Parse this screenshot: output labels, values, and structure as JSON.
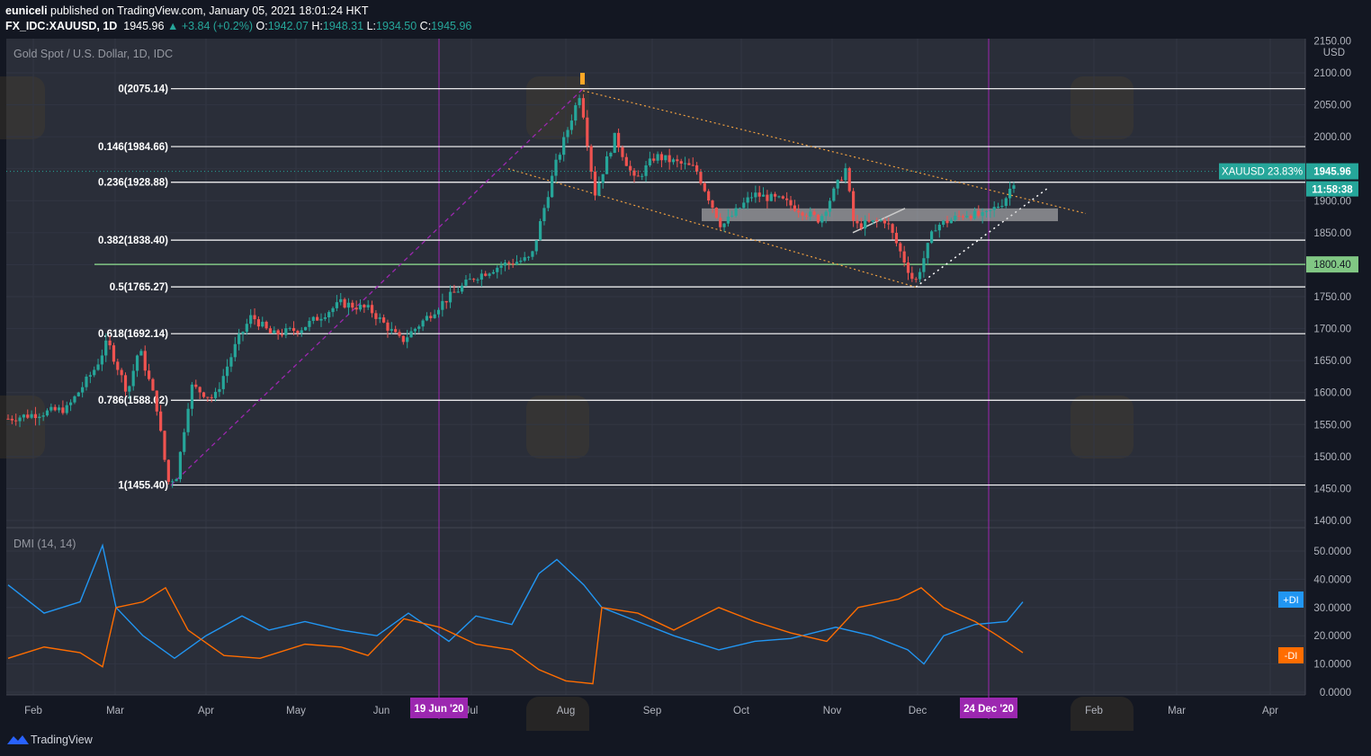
{
  "header": {
    "author": "euniceli",
    "published": "published on TradingView.com, January 05, 2021 18:01:24 HKT",
    "symbol": "FX_IDC:XAUUSD, 1D",
    "last": "1945.96",
    "change": "+3.84 (+0.2%)",
    "o_label": "O:",
    "o": "1942.07",
    "h_label": "H:",
    "h": "1948.31",
    "l_label": "L:",
    "l": "1934.50",
    "c_label": "C:",
    "c": "1945.96"
  },
  "main_pane": {
    "title": "Gold Spot / U.S. Dollar, 1D, IDC",
    "currency": "USD",
    "price_ticks": [
      "2150.00",
      "2100.00",
      "2050.00",
      "2000.00",
      "1950.00",
      "1900.00",
      "1850.00",
      "1800.00",
      "1750.00",
      "1700.00",
      "1650.00",
      "1600.00",
      "1550.00",
      "1500.00",
      "1450.00",
      "1400.00"
    ],
    "price_badge_label": "XAUUSD 23.83%",
    "price_badge_value": "1945.96",
    "countdown": "11:58:38",
    "support_badge": "1800.40"
  },
  "dmi_pane": {
    "title": "DMI (14, 14)",
    "ticks": [
      "50.0000",
      "40.0000",
      "30.0000",
      "20.0000",
      "10.0000",
      "0.0000"
    ],
    "plus_di_label": "+DI",
    "minus_di_label": "-DI"
  },
  "date_axis": {
    "labels": [
      "Feb",
      "Mar",
      "Apr",
      "May",
      "Jun",
      "Jul",
      "Aug",
      "Sep",
      "Oct",
      "Nov",
      "Dec",
      "Feb",
      "Mar",
      "Apr"
    ],
    "marker1": "19 Jun '20",
    "marker2": "24 Dec '20"
  },
  "footer": {
    "brand": "TradingView"
  },
  "colors": {
    "background": "#131722",
    "up": "#26a69a",
    "down": "#ef5350",
    "plus_di": "#2196f3",
    "minus_di": "#ff6d00",
    "vertical_marker": "#9c27b0",
    "support_line": "#81c784"
  },
  "chart_data": [
    {
      "type": "candlestick",
      "title": "Gold Spot / U.S. Dollar, 1D, IDC",
      "ylabel": "USD",
      "ylim": [
        1400,
        2150
      ],
      "fib_levels": [
        {
          "ratio": "0",
          "price": 2075.14,
          "label": "0(2075.14)"
        },
        {
          "ratio": "0.146",
          "price": 1984.66,
          "label": "0.146(1984.66)"
        },
        {
          "ratio": "0.236",
          "price": 1928.88,
          "label": "0.236(1928.88)"
        },
        {
          "ratio": "0.382",
          "price": 1838.4,
          "label": "0.382(1838.40)"
        },
        {
          "ratio": "0.5",
          "price": 1765.27,
          "label": "0.5(1765.27)"
        },
        {
          "ratio": "0.618",
          "price": 1692.14,
          "label": "0.618(1692.14)"
        },
        {
          "ratio": "0.786",
          "price": 1588.02,
          "label": "0.786(1588.02)"
        },
        {
          "ratio": "1",
          "price": 1455.4,
          "label": "1(1455.40)"
        }
      ],
      "support_line": 1800.4,
      "last_price": 1945.96,
      "price_path": [
        [
          "2020-02-01",
          1568
        ],
        [
          "2020-02-10",
          1575
        ],
        [
          "2020-02-20",
          1640
        ],
        [
          "2020-02-24",
          1680
        ],
        [
          "2020-03-02",
          1600
        ],
        [
          "2020-03-06",
          1670
        ],
        [
          "2020-03-12",
          1580
        ],
        [
          "2020-03-16",
          1460
        ],
        [
          "2020-03-19",
          1470
        ],
        [
          "2020-03-24",
          1610
        ],
        [
          "2020-04-01",
          1590
        ],
        [
          "2020-04-09",
          1680
        ],
        [
          "2020-04-14",
          1720
        ],
        [
          "2020-04-21",
          1690
        ],
        [
          "2020-05-01",
          1700
        ],
        [
          "2020-05-15",
          1740
        ],
        [
          "2020-05-25",
          1730
        ],
        [
          "2020-06-05",
          1680
        ],
        [
          "2020-06-19",
          1740
        ],
        [
          "2020-06-30",
          1780
        ],
        [
          "2020-07-10",
          1800
        ],
        [
          "2020-07-20",
          1810
        ],
        [
          "2020-07-28",
          1950
        ],
        [
          "2020-08-06",
          2070
        ],
        [
          "2020-08-11",
          1910
        ],
        [
          "2020-08-18",
          2000
        ],
        [
          "2020-08-25",
          1930
        ],
        [
          "2020-09-01",
          1970
        ],
        [
          "2020-09-15",
          1950
        ],
        [
          "2020-09-24",
          1860
        ],
        [
          "2020-10-05",
          1910
        ],
        [
          "2020-10-15",
          1900
        ],
        [
          "2020-10-28",
          1870
        ],
        [
          "2020-11-06",
          1950
        ],
        [
          "2020-11-09",
          1860
        ],
        [
          "2020-11-20",
          1870
        ],
        [
          "2020-11-30",
          1770
        ],
        [
          "2020-12-07",
          1860
        ],
        [
          "2020-12-18",
          1880
        ],
        [
          "2020-12-24",
          1875
        ],
        [
          "2020-12-31",
          1900
        ],
        [
          "2021-01-05",
          1945.96
        ]
      ]
    },
    {
      "type": "line",
      "title": "DMI (14, 14)",
      "ylim": [
        0,
        55
      ],
      "series": [
        {
          "name": "+DI",
          "values": [
            [
              0,
              38
            ],
            [
              40,
              28
            ],
            [
              80,
              32
            ],
            [
              105,
              52
            ],
            [
              120,
              30
            ],
            [
              150,
              20
            ],
            [
              185,
              12
            ],
            [
              220,
              20
            ],
            [
              260,
              27
            ],
            [
              290,
              22
            ],
            [
              330,
              25
            ],
            [
              370,
              22
            ],
            [
              410,
              20
            ],
            [
              445,
              28
            ],
            [
              490,
              18
            ],
            [
              520,
              27
            ],
            [
              560,
              24
            ],
            [
              590,
              42
            ],
            [
              610,
              47
            ],
            [
              640,
              38
            ],
            [
              660,
              30
            ],
            [
              700,
              25
            ],
            [
              740,
              20
            ],
            [
              790,
              15
            ],
            [
              830,
              18
            ],
            [
              870,
              19
            ],
            [
              920,
              23
            ],
            [
              960,
              20
            ],
            [
              1000,
              15
            ],
            [
              1018,
              10
            ],
            [
              1040,
              20
            ],
            [
              1075,
              24
            ],
            [
              1110,
              25
            ],
            [
              1128,
              32
            ]
          ]
        },
        {
          "name": "-DI",
          "values": [
            [
              0,
              12
            ],
            [
              40,
              16
            ],
            [
              80,
              14
            ],
            [
              105,
              9
            ],
            [
              120,
              30
            ],
            [
              150,
              32
            ],
            [
              175,
              37
            ],
            [
              200,
              22
            ],
            [
              240,
              13
            ],
            [
              280,
              12
            ],
            [
              330,
              17
            ],
            [
              370,
              16
            ],
            [
              400,
              13
            ],
            [
              440,
              26
            ],
            [
              480,
              23
            ],
            [
              520,
              17
            ],
            [
              560,
              15
            ],
            [
              590,
              8
            ],
            [
              620,
              4
            ],
            [
              650,
              3
            ],
            [
              660,
              30
            ],
            [
              700,
              28
            ],
            [
              740,
              22
            ],
            [
              790,
              30
            ],
            [
              830,
              25
            ],
            [
              870,
              21
            ],
            [
              910,
              18
            ],
            [
              945,
              30
            ],
            [
              990,
              33
            ],
            [
              1015,
              37
            ],
            [
              1040,
              30
            ],
            [
              1075,
              25
            ],
            [
              1100,
              20
            ],
            [
              1128,
              14
            ]
          ]
        }
      ]
    }
  ]
}
